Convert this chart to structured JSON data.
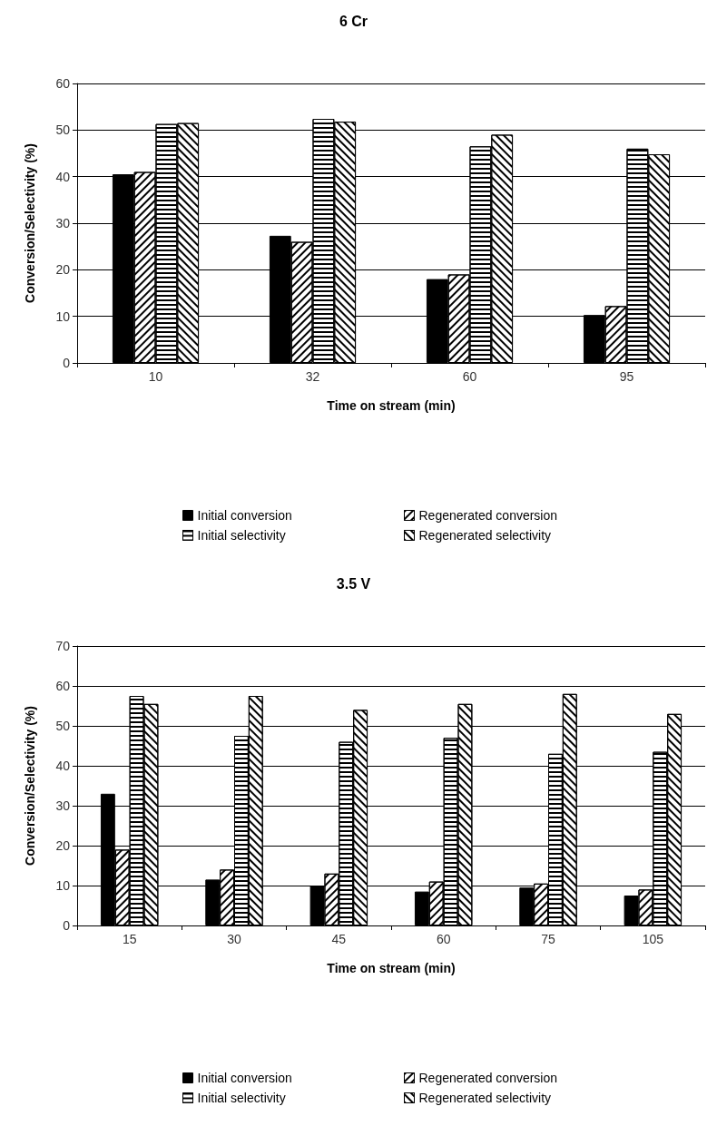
{
  "chart_data": [
    {
      "type": "bar",
      "title": "6 Cr",
      "xlabel": "Time on stream (min)",
      "ylabel": "Conversion/Selectivity (%)",
      "categories": [
        "10",
        "32",
        "60",
        "95"
      ],
      "ylim": [
        0,
        60
      ],
      "yticks": [
        0,
        10,
        20,
        30,
        40,
        50,
        60
      ],
      "grid": "y",
      "legend": "bottom",
      "series": [
        {
          "name": "Initial conversion",
          "color": "#000000",
          "values": [
            40.5,
            27.3,
            18,
            10.3
          ]
        },
        {
          "name": "Regenerated conversion",
          "color": "#ffffff",
          "values": [
            41,
            26,
            19,
            12.2
          ]
        },
        {
          "name": "Initial selectivity",
          "color": "#ffffff",
          "values": [
            51.3,
            52.4,
            46.5,
            46
          ]
        },
        {
          "name": "Regenerated selectivity",
          "color": "#ffffff",
          "values": [
            51.5,
            51.8,
            49,
            44.8
          ]
        }
      ]
    },
    {
      "type": "bar",
      "title": "3.5 V",
      "xlabel": "Time on stream (min)",
      "ylabel": "Conversion/Selectivity (%)",
      "categories": [
        "15",
        "30",
        "45",
        "60",
        "75",
        "105"
      ],
      "ylim": [
        0,
        70
      ],
      "yticks": [
        0,
        10,
        20,
        30,
        40,
        50,
        60,
        70
      ],
      "grid": "y",
      "legend": "bottom",
      "series": [
        {
          "name": "Initial conversion",
          "color": "#000000",
          "values": [
            33,
            11.5,
            10,
            8.5,
            9.5,
            7.5
          ]
        },
        {
          "name": "Regenerated conversion",
          "color": "#ffffff",
          "values": [
            19,
            14,
            13,
            11,
            10.5,
            9
          ]
        },
        {
          "name": "Initial selectivity",
          "color": "#ffffff",
          "values": [
            57.5,
            47.5,
            46,
            47,
            43,
            43.5
          ]
        },
        {
          "name": "Regenerated selectivity",
          "color": "#ffffff",
          "values": [
            55.5,
            57.5,
            54,
            55.5,
            58,
            53
          ]
        }
      ]
    }
  ]
}
